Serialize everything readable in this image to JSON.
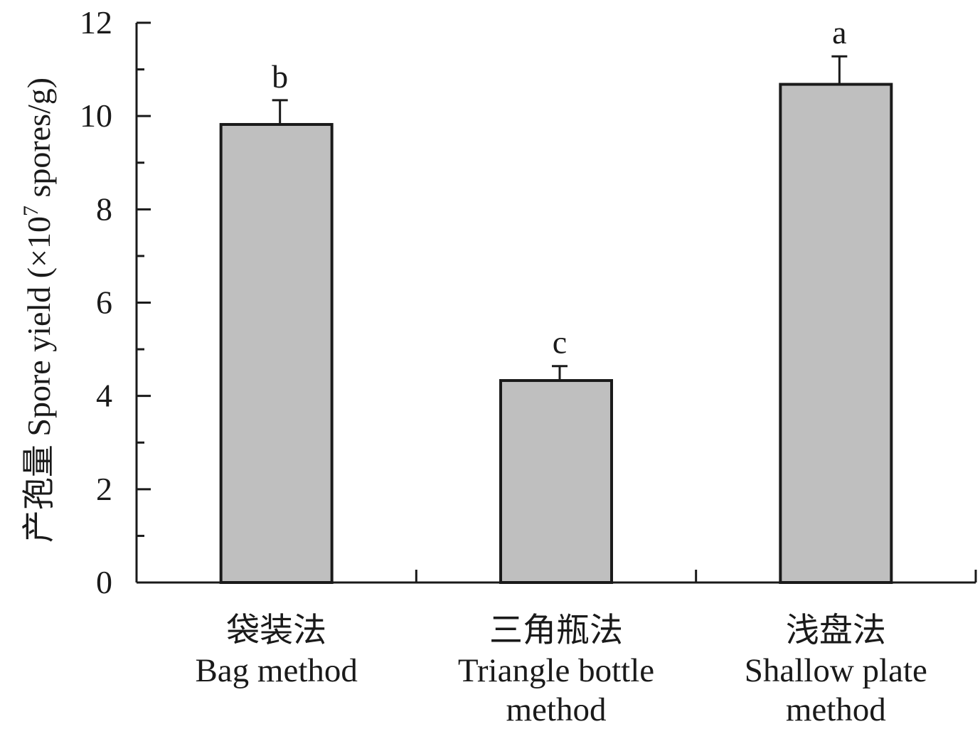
{
  "chart_data": {
    "type": "bar",
    "title": "",
    "ylabel": "产孢量 Spore yield (×10",
    "ylabel_sup": "7",
    "ylabel_tail": " spores/g)",
    "ylim": [
      0,
      12
    ],
    "yticks": [
      0,
      2,
      4,
      6,
      8,
      10,
      12
    ],
    "ymajor_step": 2,
    "yminor_step": 1,
    "categories": [
      {
        "cn": "袋装法",
        "en": [
          "Bag method"
        ]
      },
      {
        "cn": "三角瓶法",
        "en": [
          "Triangle bottle",
          "method"
        ]
      },
      {
        "cn": "浅盘法",
        "en": [
          "Shallow plate",
          "method"
        ]
      }
    ],
    "values": [
      9.82,
      4.33,
      10.68
    ],
    "errors": [
      0.52,
      0.31,
      0.6
    ],
    "significance": [
      "b",
      "c",
      "a"
    ],
    "grid": false,
    "legend": "none",
    "bar_color": "#bfbfbf",
    "line_color": "#1a1a1a"
  }
}
